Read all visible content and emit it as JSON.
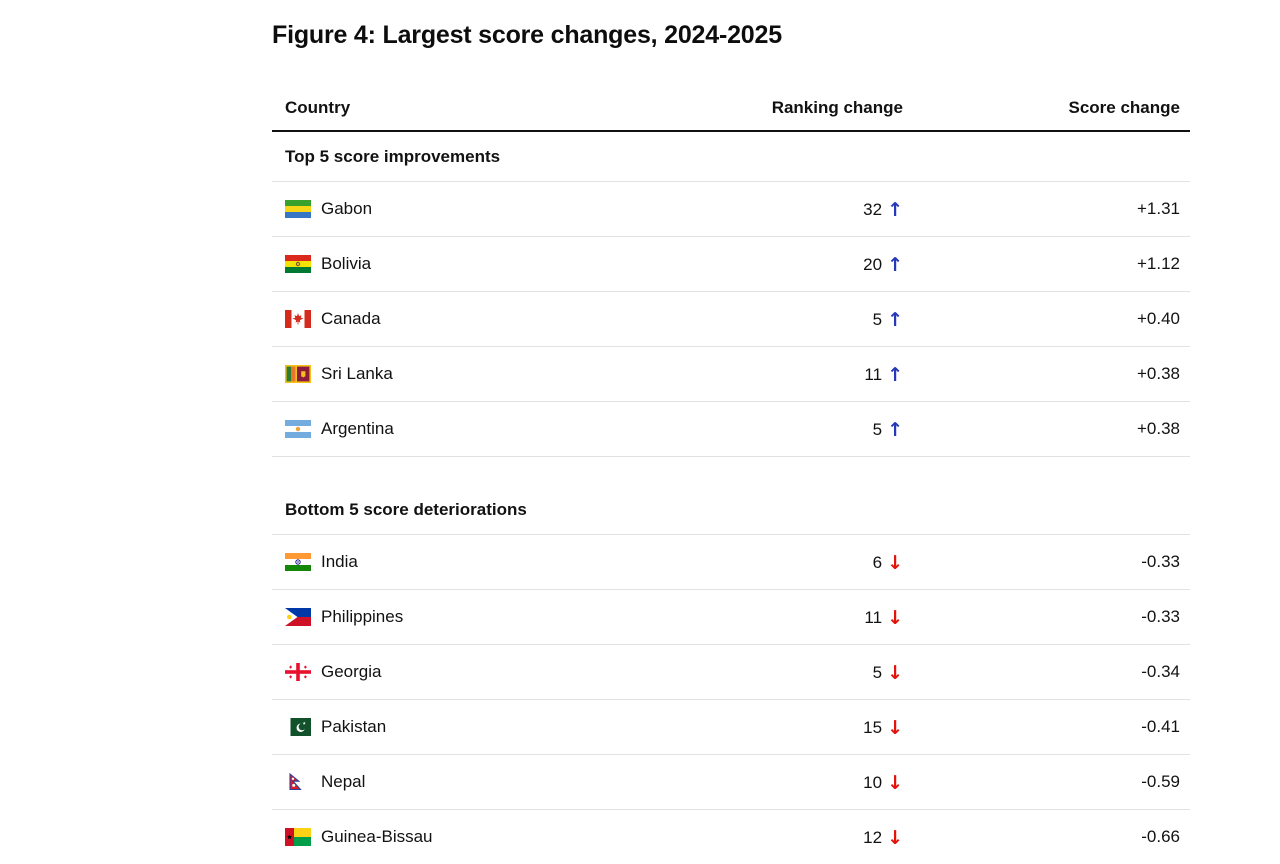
{
  "chart_data": {
    "type": "table",
    "title": "Figure 4: Largest score changes, 2024-2025",
    "columns": [
      "Country",
      "Ranking change",
      "Score change"
    ],
    "sections": [
      {
        "label": "Top 5 score improvements",
        "rows": [
          {
            "country": "Gabon",
            "flag": "gabon",
            "ranking_change": "32",
            "direction": "up",
            "score_change": "+1.31"
          },
          {
            "country": "Bolivia",
            "flag": "bolivia",
            "ranking_change": "20",
            "direction": "up",
            "score_change": "+1.12"
          },
          {
            "country": "Canada",
            "flag": "canada",
            "ranking_change": "5",
            "direction": "up",
            "score_change": "+0.40"
          },
          {
            "country": "Sri Lanka",
            "flag": "sri-lanka",
            "ranking_change": "11",
            "direction": "up",
            "score_change": "+0.38"
          },
          {
            "country": "Argentina",
            "flag": "argentina",
            "ranking_change": "5",
            "direction": "up",
            "score_change": "+0.38"
          }
        ]
      },
      {
        "label": "Bottom 5 score deteriorations",
        "rows": [
          {
            "country": "India",
            "flag": "india",
            "ranking_change": "6",
            "direction": "down",
            "score_change": "-0.33"
          },
          {
            "country": "Philippines",
            "flag": "philippines",
            "ranking_change": "11",
            "direction": "down",
            "score_change": "-0.33"
          },
          {
            "country": "Georgia",
            "flag": "georgia",
            "ranking_change": "5",
            "direction": "down",
            "score_change": "-0.34"
          },
          {
            "country": "Pakistan",
            "flag": "pakistan",
            "ranking_change": "15",
            "direction": "down",
            "score_change": "-0.41"
          },
          {
            "country": "Nepal",
            "flag": "nepal",
            "ranking_change": "10",
            "direction": "down",
            "score_change": "-0.59"
          },
          {
            "country": "Guinea-Bissau",
            "flag": "guinea-bissau",
            "ranking_change": "12",
            "direction": "down",
            "score_change": "-0.66"
          }
        ]
      }
    ],
    "icons": {
      "up_arrow": "↑",
      "down_arrow": "↓"
    },
    "colors": {
      "up_arrow": "#2438b8",
      "down_arrow": "#e3120b",
      "text": "#121212",
      "separator": "#e2e2e2",
      "header_rule": "#121212"
    },
    "layout_hints": {
      "legend": "none",
      "grid": "row-separators"
    }
  }
}
